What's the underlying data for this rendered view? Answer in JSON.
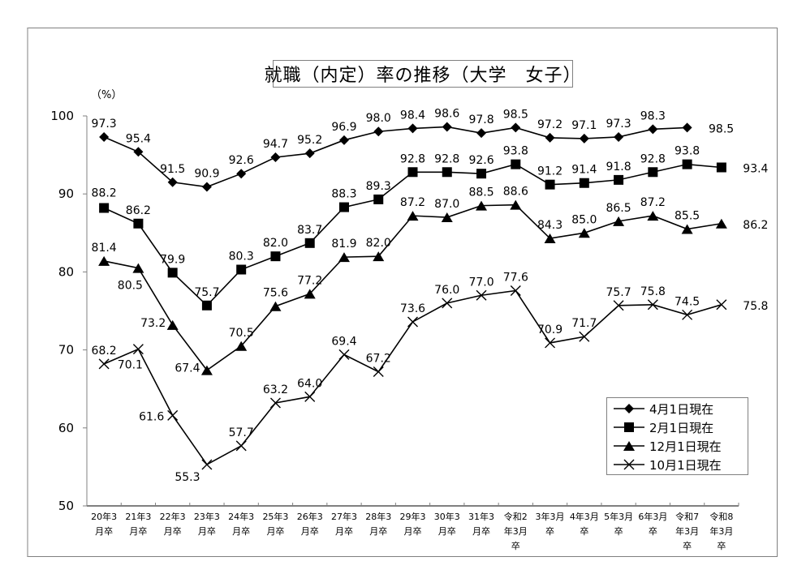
{
  "chart_data": {
    "type": "line",
    "title": "就職（内定）率の推移（大学　女子）",
    "ylabel": "（%）",
    "xlabel": "",
    "ylim": [
      50,
      100
    ],
    "yticks": [
      50,
      60,
      70,
      80,
      90,
      100
    ],
    "grid": false,
    "legend_position": "lower-right inside",
    "categories": [
      "20年3月卒",
      "21年3月卒",
      "22年3月卒",
      "23年3月卒",
      "24年3月卒",
      "25年3月卒",
      "26年3月卒",
      "27年3月卒",
      "28年3月卒",
      "29年3月卒",
      "30年3月卒",
      "31年3月卒",
      "令和2年3月卒",
      "3年3月卒",
      "4年3月卒",
      "5年3月卒",
      "6年3月卒",
      "令和7年3月卒",
      "令和8年3月卒"
    ],
    "category_lines": [
      [
        "20年3",
        "月卒"
      ],
      [
        "21年3",
        "月卒"
      ],
      [
        "22年3",
        "月卒"
      ],
      [
        "23年3",
        "月卒"
      ],
      [
        "24年3",
        "月卒"
      ],
      [
        "25年3",
        "月卒"
      ],
      [
        "26年3",
        "月卒"
      ],
      [
        "27年3",
        "月卒"
      ],
      [
        "28年3",
        "月卒"
      ],
      [
        "29年3",
        "月卒"
      ],
      [
        "30年3",
        "月卒"
      ],
      [
        "31年3",
        "月卒"
      ],
      [
        "令和2",
        "年3月",
        "卒"
      ],
      [
        "3年3月",
        "卒"
      ],
      [
        "4年3月",
        "卒"
      ],
      [
        "5年3月",
        "卒"
      ],
      [
        "6年3月",
        "卒"
      ],
      [
        "令和7",
        "年3月",
        "卒"
      ],
      [
        "令和8",
        "年3月",
        "卒"
      ]
    ],
    "series": [
      {
        "name": "4月1日現在",
        "marker": "diamond",
        "values": [
          97.3,
          95.4,
          91.5,
          90.9,
          92.6,
          94.7,
          95.2,
          96.9,
          98.0,
          98.4,
          98.6,
          97.8,
          98.5,
          97.2,
          97.1,
          97.3,
          98.3,
          98.5,
          null
        ]
      },
      {
        "name": "2月1日現在",
        "marker": "square",
        "values": [
          88.2,
          86.2,
          79.9,
          75.7,
          80.3,
          82.0,
          83.7,
          88.3,
          89.3,
          92.8,
          92.8,
          92.6,
          93.8,
          91.2,
          91.4,
          91.8,
          92.8,
          93.8,
          93.4
        ]
      },
      {
        "name": "12月1日現在",
        "marker": "triangle",
        "values": [
          81.4,
          80.5,
          73.2,
          67.4,
          70.5,
          75.6,
          77.2,
          81.9,
          82.0,
          87.2,
          87.0,
          88.5,
          88.6,
          84.3,
          85.0,
          86.5,
          87.2,
          85.5,
          86.2
        ]
      },
      {
        "name": "10月1日現在",
        "marker": "x",
        "values": [
          68.2,
          70.1,
          61.6,
          55.3,
          57.7,
          63.2,
          64.0,
          69.4,
          67.2,
          73.6,
          76.0,
          77.0,
          77.6,
          70.9,
          71.7,
          75.7,
          75.8,
          74.5,
          75.8
        ]
      }
    ]
  },
  "colors": {
    "line": "#000000",
    "axis": "#808080",
    "frame": "#808080",
    "background": "#ffffff"
  }
}
